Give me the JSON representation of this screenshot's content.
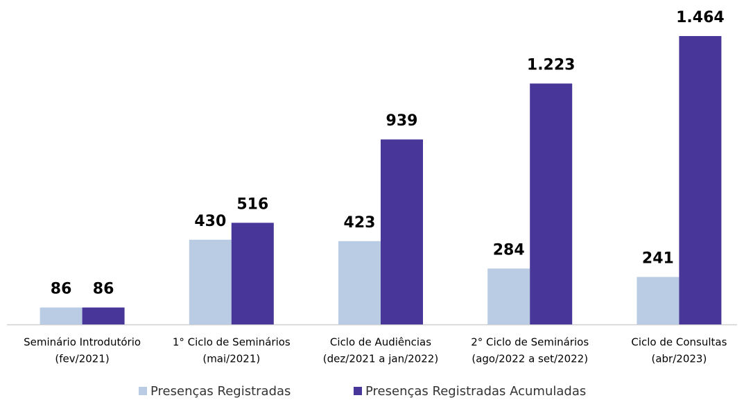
{
  "chart_data": {
    "type": "bar",
    "categories": [
      [
        "Seminário Introdutório",
        "(fev/2021)"
      ],
      [
        "1° Ciclo de Seminários",
        "(mai/2021)"
      ],
      [
        "Ciclo de Audiências",
        "(dez/2021 a jan/2022)"
      ],
      [
        "2° Ciclo de Seminários",
        "(ago/2022 a set/2022)"
      ],
      [
        "Ciclo de Consultas",
        "(abr/2023)"
      ]
    ],
    "series": [
      {
        "name": "Presenças Registradas",
        "color": "#b9cce4",
        "values": [
          86,
          430,
          423,
          284,
          241
        ]
      },
      {
        "name": "Presenças Registradas Acumuladas",
        "color": "#483698",
        "values": [
          86,
          516,
          939,
          1223,
          1464
        ],
        "value_labels": [
          "86",
          "516",
          "939",
          "1.223",
          "1.464"
        ]
      }
    ],
    "legend": "bottom"
  }
}
